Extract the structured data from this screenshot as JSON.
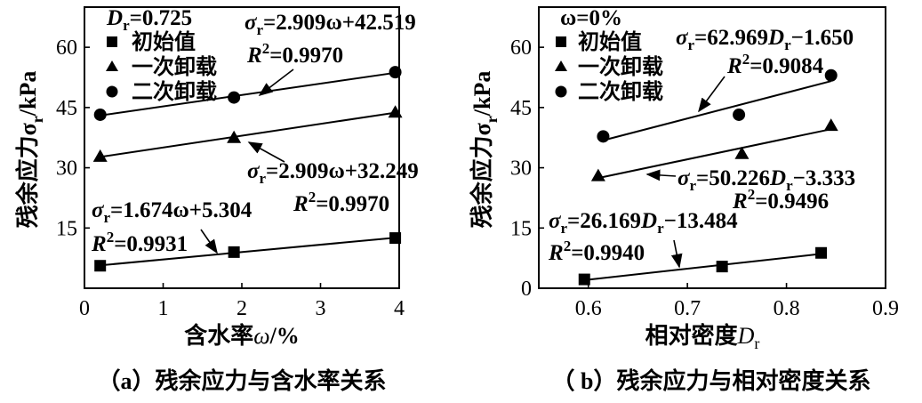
{
  "chart_data": [
    {
      "type": "scatter",
      "xlabel": "含水率ω/%",
      "ylabel": "残余应力σr/kPa",
      "caption": "（a）残余应力与含水率关系",
      "xlim": [
        0,
        4
      ],
      "ylim": [
        0,
        70
      ],
      "xticks": [
        "0",
        "1",
        "2",
        "3",
        "4"
      ],
      "yticks": [
        "15",
        "30",
        "45",
        "60"
      ],
      "condition": "Dr=0.725",
      "legend": [
        "初始值",
        "一次卸载",
        "二次卸载"
      ],
      "series": [
        {
          "name": "初始值",
          "marker": "square",
          "x": [
            0.2,
            1.9,
            3.95
          ],
          "y": [
            5.6,
            9.0,
            12.5
          ],
          "fit_eq": "σr=1.674ω+5.304",
          "r2": "R2=0.9931"
        },
        {
          "name": "一次卸载",
          "marker": "triangle",
          "x": [
            0.2,
            1.9,
            3.95
          ],
          "y": [
            32.8,
            37.5,
            43.8
          ],
          "fit_eq": "σr=2.909ω+32.249",
          "r2": "R2=0.9970"
        },
        {
          "name": "二次卸载",
          "marker": "circle",
          "x": [
            0.2,
            1.9,
            3.95
          ],
          "y": [
            43.2,
            47.5,
            53.8
          ],
          "fit_eq": "σr=2.909ω+42.519",
          "r2": "R2=0.9970"
        }
      ]
    },
    {
      "type": "scatter",
      "xlabel": "相对密度Dr",
      "ylabel": "残余应力σr/kPa",
      "caption": "（ b）残余应力与相对密度关系",
      "xlim": [
        0.55,
        0.9
      ],
      "ylim": [
        0,
        70
      ],
      "xticks": [
        "0.6",
        "0.7",
        "0.8",
        "0.9"
      ],
      "yticks": [
        "0",
        "15",
        "30",
        "45",
        "60"
      ],
      "condition": "ω=0%",
      "legend": [
        "初始值",
        "一次卸载",
        "二次卸载"
      ],
      "series": [
        {
          "name": "初始值",
          "marker": "square",
          "x": [
            0.596,
            0.735,
            0.835
          ],
          "y": [
            2.2,
            5.4,
            8.8
          ],
          "fit_eq": "σr=26.169Dr−13.484",
          "r2": "R2=0.9940"
        },
        {
          "name": "一次卸载",
          "marker": "triangle",
          "x": [
            0.61,
            0.755,
            0.845
          ],
          "y": [
            28.0,
            33.5,
            40.5
          ],
          "fit_eq": "σr=50.226Dr−3.333",
          "r2": "R2=0.9496"
        },
        {
          "name": "二次卸载",
          "marker": "circle",
          "x": [
            0.615,
            0.752,
            0.845
          ],
          "y": [
            37.8,
            43.2,
            53.0
          ],
          "fit_eq": "σr=62.969Dr−1.650",
          "r2": "R2=0.9084"
        }
      ]
    }
  ],
  "charts_text": [
    {
      "ylabel_main": "残余应力σ",
      "ylabel_sub": "r",
      "ylabel_unit": "/kPa",
      "xlabel_main": "含水率",
      "xlabel_var": "ω",
      "xlabel_unit": "/%",
      "cond_var": "D",
      "cond_sub": "r",
      "cond_val": "=0.725",
      "eq_circle": {
        "pre": "σ",
        "sub": "r",
        "post": "=2.909ω+42.519",
        "r2pre": "R",
        "r2sup": "2",
        "r2val": "=0.9970"
      },
      "eq_tri": {
        "pre": "σ",
        "sub": "r",
        "post": "=2.909ω+32.249",
        "r2pre": "R",
        "r2sup": "2",
        "r2val": "=0.9970"
      },
      "eq_sq": {
        "pre": "σ",
        "sub": "r",
        "post": "=1.674ω+5.304",
        "r2pre": "R",
        "r2sup": "2",
        "r2val": "=0.9931"
      }
    },
    {
      "ylabel_main": "残余应力σ",
      "ylabel_sub": "r",
      "ylabel_unit": "/kPa",
      "xlabel_main": "相对密度",
      "xlabel_var": "D",
      "xlabel_sub": "r",
      "cond_text": "ω=0%",
      "eq_circle": {
        "pre": "σ",
        "sub": "r",
        "post": "=62.969",
        "var": "D",
        "vsub": "r",
        "tail": "−1.650",
        "r2pre": "R",
        "r2sup": "2",
        "r2val": "=0.9084"
      },
      "eq_tri": {
        "pre": "σ",
        "sub": "r",
        "post": "=50.226",
        "var": "D",
        "vsub": "r",
        "tail": "−3.333",
        "r2pre": "R",
        "r2sup": "2",
        "r2val": "=0.9496"
      },
      "eq_sq": {
        "pre": "σ",
        "sub": "r",
        "post": "=26.169",
        "var": "D",
        "vsub": "r",
        "tail": "−13.484",
        "r2pre": "R",
        "r2sup": "2",
        "r2val": "=0.9940"
      }
    }
  ]
}
